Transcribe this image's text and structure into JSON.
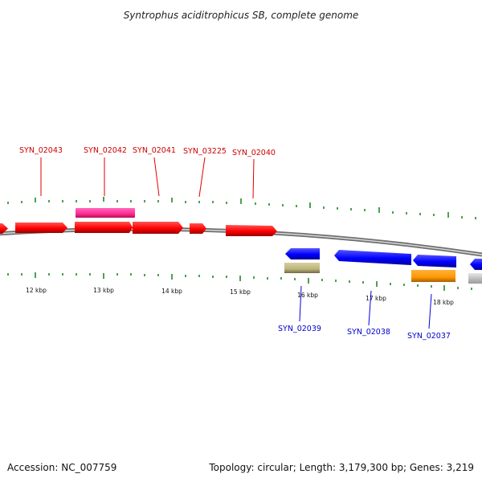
{
  "title": "Syntrophus aciditrophicus SB, complete genome",
  "footer": {
    "accession": "Accession: NC_007759",
    "topology": "Topology: circular; Length: 3,179,300 bp; Genes: 3,219"
  },
  "colors": {
    "forward_gene": "#ff0000",
    "forward_label": "#cc0000",
    "reverse_gene": "#0000ff",
    "reverse_label": "#0000cc",
    "rna_pink": "#ff3399",
    "olive": "#c8c08a",
    "orange": "#ff9900",
    "grey_feature": "#cccccc",
    "tick_green": "#228822",
    "backbone": "#999999"
  },
  "scale_labels": [
    "12 kbp",
    "13 kbp",
    "14 kbp",
    "15 kbp",
    "16 kbp",
    "17 kbp",
    "18 kbp"
  ],
  "gene_labels": [
    {
      "id": "SYN_02043",
      "strand": "forward"
    },
    {
      "id": "SYN_02042",
      "strand": "forward"
    },
    {
      "id": "SYN_02041",
      "strand": "forward"
    },
    {
      "id": "SYN_03225",
      "strand": "forward"
    },
    {
      "id": "SYN_02040",
      "strand": "forward"
    },
    {
      "id": "SYN_02039",
      "strand": "reverse"
    },
    {
      "id": "SYN_02038",
      "strand": "reverse"
    },
    {
      "id": "SYN_02037",
      "strand": "reverse"
    }
  ]
}
